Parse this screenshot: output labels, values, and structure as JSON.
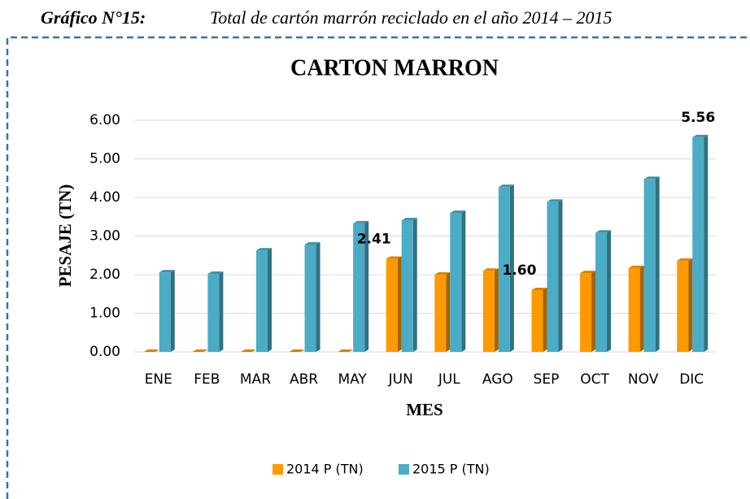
{
  "caption": {
    "label": "Gráfico N°15:",
    "text": "Total de cartón marrón reciclado en el año 2014 – 2015"
  },
  "chart_data": {
    "type": "bar",
    "title": "CARTON MARRON",
    "x_label": "MES",
    "y_label": "PESAJE (TN)",
    "categories": [
      "ENE",
      "FEB",
      "MAR",
      "ABR",
      "MAY",
      "JUN",
      "JUL",
      "AGO",
      "SEP",
      "OCT",
      "NOV",
      "DIC"
    ],
    "series": [
      {
        "name": "2014 P (TN)",
        "color": "#ff9900",
        "values": [
          0,
          0,
          0,
          0,
          0,
          2.41,
          2.0,
          2.1,
          1.6,
          2.04,
          2.17,
          2.36
        ],
        "value_labels": [
          null,
          null,
          null,
          null,
          null,
          "2.41",
          null,
          null,
          "1.60",
          null,
          null,
          null
        ]
      },
      {
        "name": "2015 P (TN)",
        "color": "#4bacc6",
        "values": [
          2.06,
          2.02,
          2.63,
          2.78,
          3.33,
          3.41,
          3.6,
          4.27,
          3.89,
          3.09,
          4.48,
          5.56
        ],
        "value_labels": [
          null,
          null,
          null,
          null,
          null,
          null,
          null,
          null,
          null,
          null,
          null,
          "5.56"
        ]
      }
    ],
    "ylim": [
      0,
      6
    ],
    "yticks": [
      {
        "value": 0,
        "label": "0.00"
      },
      {
        "value": 1,
        "label": "1.00"
      },
      {
        "value": 2,
        "label": "2.00"
      },
      {
        "value": 3,
        "label": "3.00"
      },
      {
        "value": 4,
        "label": "4.00"
      },
      {
        "value": 5,
        "label": "5.00"
      },
      {
        "value": 6,
        "label": "6.00"
      }
    ],
    "grid": true,
    "legend": "bottom"
  }
}
